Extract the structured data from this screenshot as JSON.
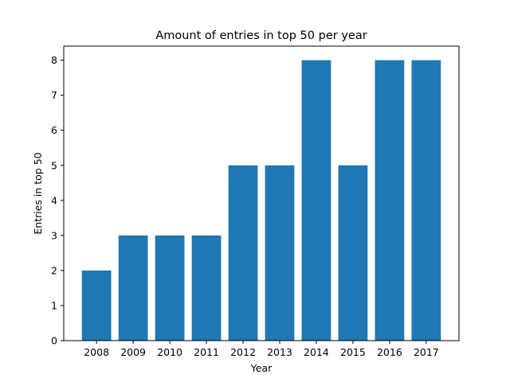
{
  "chart_data": {
    "type": "bar",
    "title": "Amount of entries in top 50 per year",
    "xlabel": "Year",
    "ylabel": "Entries in top 50",
    "categories": [
      "2008",
      "2009",
      "2010",
      "2011",
      "2012",
      "2013",
      "2014",
      "2015",
      "2016",
      "2017"
    ],
    "values": [
      2,
      3,
      3,
      3,
      5,
      5,
      8,
      5,
      8,
      8
    ],
    "ylim": [
      0,
      8.4
    ],
    "yticks": [
      0,
      1,
      2,
      3,
      4,
      5,
      6,
      7,
      8
    ],
    "bar_color": "#1f77b4",
    "grid": false,
    "legend": "none"
  }
}
